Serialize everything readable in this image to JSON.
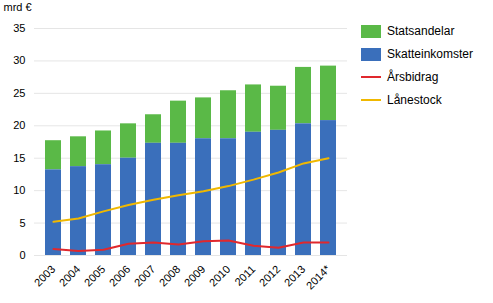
{
  "chart_data": {
    "type": "bar",
    "stacked": true,
    "categories": [
      "2003",
      "2004",
      "2005",
      "2006",
      "2007",
      "2008",
      "2009",
      "2010",
      "2011",
      "2012",
      "2013",
      "2014*"
    ],
    "series": [
      {
        "name": "Statsandelar",
        "type": "bar",
        "color": "#5ab947",
        "values": [
          4.5,
          4.6,
          5.2,
          5.3,
          4.4,
          6.5,
          6.3,
          7.4,
          7.3,
          6.8,
          8.7,
          8.4
        ]
      },
      {
        "name": "Skatteinkomster",
        "type": "bar",
        "color": "#3a6fbb",
        "values": [
          13.2,
          13.7,
          14.0,
          15.0,
          17.3,
          17.3,
          18.0,
          18.0,
          19.0,
          19.3,
          20.3,
          20.8
        ]
      },
      {
        "name": "Årsbidrag",
        "type": "line",
        "color": "#e0282d",
        "values": [
          1.0,
          0.7,
          0.9,
          1.8,
          2.0,
          1.7,
          2.2,
          2.3,
          1.5,
          1.2,
          2.0,
          2.0
        ]
      },
      {
        "name": "Lånestock",
        "type": "line",
        "color": "#f0b800",
        "values": [
          5.2,
          5.7,
          6.8,
          7.8,
          8.6,
          9.3,
          9.9,
          10.7,
          11.7,
          12.8,
          14.2,
          15.0
        ]
      }
    ],
    "ylabel": "mrd €",
    "ylim": [
      0,
      35
    ],
    "yticks": [
      0,
      5,
      10,
      15,
      20,
      25,
      30,
      35
    ],
    "grid": true,
    "legend": "right"
  }
}
